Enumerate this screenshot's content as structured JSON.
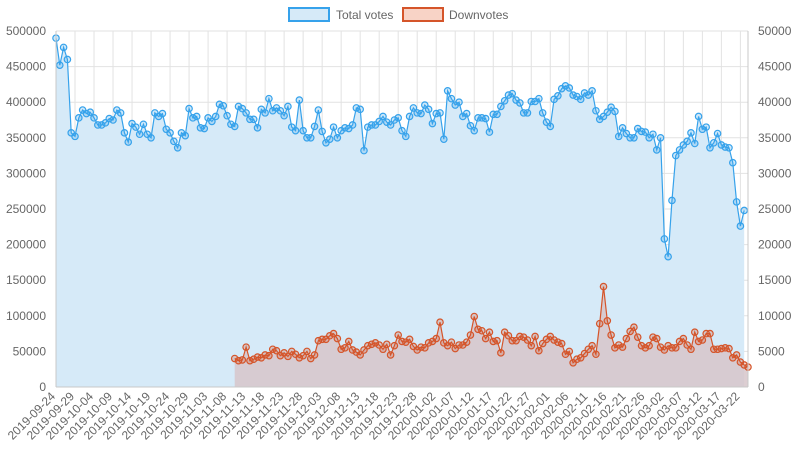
{
  "chart_data": {
    "type": "line",
    "title": "",
    "xlabel": "",
    "ylabel": "",
    "ylim_left": [
      0,
      500000
    ],
    "ylim_right": [
      0,
      50000
    ],
    "yticks_left": [
      "0",
      "50000",
      "100000",
      "150000",
      "200000",
      "250000",
      "300000",
      "350000",
      "400000",
      "450000",
      "500000"
    ],
    "yticks_right": [
      "0",
      "5000",
      "10000",
      "15000",
      "20000",
      "25000",
      "30000",
      "35000",
      "40000",
      "45000",
      "50000"
    ],
    "x_start": "2019-09-24",
    "x_end": "2020-03-24",
    "x_tick_labels": [
      "2019-09-24",
      "2019-09-29",
      "2019-10-04",
      "2019-10-09",
      "2019-10-14",
      "2019-10-19",
      "2019-10-24",
      "2019-10-29",
      "2019-11-03",
      "2019-11-08",
      "2019-11-13",
      "2019-11-18",
      "2019-11-23",
      "2019-11-28",
      "2019-12-03",
      "2019-12-08",
      "2019-12-13",
      "2019-12-18",
      "2019-12-23",
      "2019-12-28",
      "2020-01-02",
      "2020-01-07",
      "2020-01-12",
      "2020-01-17",
      "2020-01-22",
      "2020-01-27",
      "2020-02-01",
      "2020-02-06",
      "2020-02-11",
      "2020-02-16",
      "2020-02-21",
      "2020-02-26",
      "2020-03-02",
      "2020-03-07",
      "2020-03-12",
      "2020-03-17",
      "2020-03-22"
    ],
    "grid": true,
    "legend_position": "top-center",
    "series": [
      {
        "name": "Total votes",
        "axis": "left",
        "color": "#36a2eb",
        "fill": "#d6eaf8",
        "start_date": "2019-09-24",
        "values": [
          490000,
          452000,
          477000,
          460000,
          357000,
          352000,
          378000,
          389000,
          384000,
          386000,
          378000,
          368000,
          368000,
          371000,
          377000,
          375000,
          389000,
          385000,
          357000,
          344000,
          370000,
          365000,
          355000,
          369000,
          355000,
          350000,
          385000,
          380000,
          384000,
          362000,
          357000,
          345000,
          336000,
          357000,
          353000,
          391000,
          378000,
          380000,
          364000,
          363000,
          378000,
          373000,
          380000,
          397000,
          395000,
          381000,
          369000,
          366000,
          394000,
          391000,
          385000,
          376000,
          376000,
          364000,
          390000,
          385000,
          405000,
          388000,
          392000,
          388000,
          381000,
          394000,
          365000,
          360000,
          403000,
          360000,
          350000,
          350000,
          366000,
          389000,
          359000,
          343000,
          348000,
          365000,
          350000,
          360000,
          364000,
          363000,
          368000,
          392000,
          390000,
          332000,
          365000,
          368000,
          368000,
          373000,
          380000,
          372000,
          368000,
          375000,
          378000,
          360000,
          352000,
          380000,
          392000,
          385000,
          384000,
          396000,
          390000,
          370000,
          384000,
          385000,
          348000,
          416000,
          405000,
          396000,
          400000,
          380000,
          384000,
          367000,
          360000,
          378000,
          378000,
          377000,
          358000,
          383000,
          383000,
          394000,
          402000,
          410000,
          412000,
          403000,
          399000,
          385000,
          385000,
          401000,
          401000,
          405000,
          385000,
          372000,
          366000,
          404000,
          409000,
          419000,
          423000,
          420000,
          410000,
          408000,
          404000,
          413000,
          410000,
          416000,
          388000,
          376000,
          380000,
          386000,
          393000,
          387000,
          352000,
          364000,
          356000,
          350000,
          350000,
          363000,
          359000,
          358000,
          350000,
          355000,
          333000,
          350000,
          208000,
          183000,
          262000,
          325000,
          333000,
          340000,
          345000,
          357000,
          342000,
          380000,
          362000,
          365000,
          336000,
          343000,
          356000,
          340000,
          337000,
          336000,
          315000,
          260000,
          226000,
          248000
        ]
      },
      {
        "name": "Downvotes",
        "axis": "right",
        "color": "#d5552a",
        "fill": "#d7c5ca",
        "start_date": "2019-11-10",
        "values": [
          4000,
          3700,
          3800,
          5600,
          3700,
          3900,
          4200,
          4100,
          4500,
          4400,
          5300,
          5100,
          4400,
          4800,
          4300,
          5000,
          4600,
          4100,
          4400,
          5000,
          4000,
          4500,
          6500,
          6700,
          6700,
          7200,
          7500,
          6800,
          5300,
          5500,
          6400,
          5200,
          4900,
          4500,
          5200,
          5800,
          6000,
          6200,
          5900,
          5300,
          6000,
          4500,
          5800,
          7300,
          6400,
          6300,
          6700,
          5700,
          5200,
          5600,
          5500,
          6200,
          6400,
          6800,
          9100,
          6200,
          5800,
          6300,
          5400,
          5900,
          5900,
          6300,
          7300,
          9900,
          8100,
          7900,
          6800,
          7700,
          6400,
          6500,
          4800,
          7700,
          7200,
          6500,
          6500,
          7100,
          7000,
          6600,
          5800,
          7100,
          5100,
          6100,
          6700,
          7100,
          6600,
          6300,
          6100,
          4600,
          5000,
          3400,
          3900,
          4100,
          4700,
          5300,
          5800,
          4600,
          8900,
          14100,
          9300,
          7300,
          5500,
          5900,
          5600,
          6800,
          7800,
          8400,
          7000,
          5800,
          5500,
          5800,
          7000,
          6800,
          5600,
          5200,
          5800,
          5500,
          5500,
          6400,
          6800,
          5900,
          5300,
          7700,
          6400,
          6600,
          7500,
          7500,
          5300,
          5300,
          5400,
          5500,
          5400,
          4100,
          4500,
          3500,
          3100,
          2800
        ]
      }
    ]
  }
}
